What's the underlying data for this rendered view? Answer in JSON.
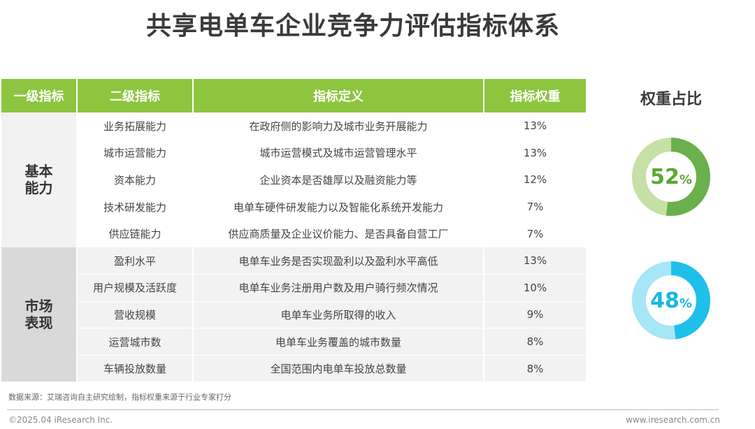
{
  "title": "共享电单车企业竞争力评估指标体系",
  "table": {
    "headers": [
      "一级指标",
      "二级指标",
      "指标定义",
      "指标权重"
    ],
    "groups": [
      {
        "category": "基本能力",
        "rows": [
          {
            "name": "业务拓展能力",
            "definition": "在政府侧的影响力及城市业务开展能力",
            "weight": "13%"
          },
          {
            "name": "城市运营能力",
            "definition": "城市运营模式及城市运营管理水平",
            "weight": "13%"
          },
          {
            "name": "资本能力",
            "definition": "企业资本是否雄厚以及融资能力等",
            "weight": "12%"
          },
          {
            "name": "技术研发能力",
            "definition": "电单车硬件研发能力以及智能化系统开发能力",
            "weight": "7%"
          },
          {
            "name": "供应链能力",
            "definition": "供应商质量及企业议价能力、是否具备自营工厂",
            "weight": "7%"
          }
        ]
      },
      {
        "category": "市场表现",
        "rows": [
          {
            "name": "盈利水平",
            "definition": "电单车业务是否实现盈利以及盈利水平高低",
            "weight": "13%"
          },
          {
            "name": "用户规模及活跃度",
            "definition": "电单车业务注册用户数及用户骑行频次情况",
            "weight": "10%"
          },
          {
            "name": "营收规模",
            "definition": "电单车业务所取得的收入",
            "weight": "9%"
          },
          {
            "name": "运营城市数",
            "definition": "电单车业务覆盖的城市数量",
            "weight": "8%"
          },
          {
            "name": "车辆投放数量",
            "definition": "全国范围内电单车投放总数量",
            "weight": "8%"
          }
        ]
      }
    ]
  },
  "ratio": {
    "title": "权重占比",
    "items": [
      {
        "value": 52,
        "number": "52",
        "unit": "%",
        "color_main": "#6ab04c",
        "color_track": "#c5e1a5",
        "color_text": "#5aa832"
      },
      {
        "value": 48,
        "number": "48",
        "unit": "%",
        "color_main": "#1ec0ea",
        "color_track": "#a6e6f7",
        "color_text": "#19b7e3"
      }
    ]
  },
  "footer": {
    "source": "数据来源：艾瑞咨询自主研究绘制，指标权重来源于行业专家打分",
    "copyright": "©2025.04 iResearch Inc.",
    "website": "www.iresearch.com.cn"
  }
}
